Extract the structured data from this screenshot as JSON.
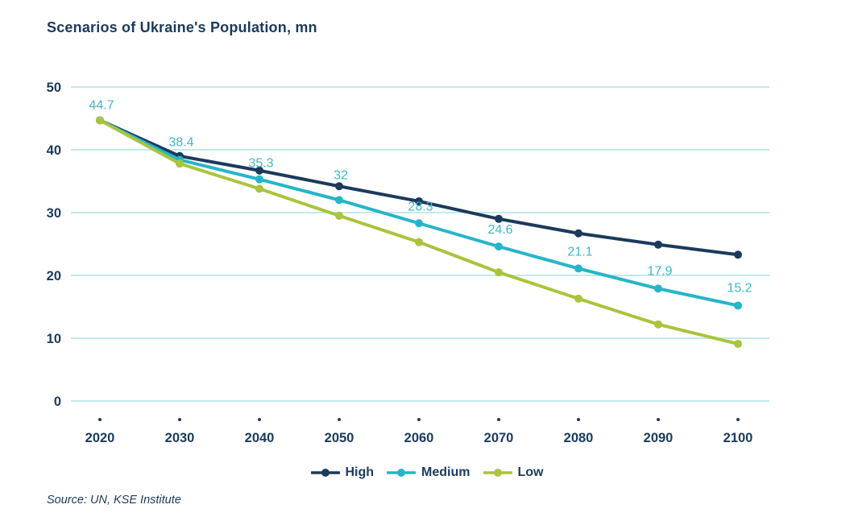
{
  "title": "Scenarios of Ukraine's Population, mn",
  "source": "Source: UN, KSE Institute",
  "colors": {
    "text": "#1b3a5c",
    "grid": "#c3e9ed",
    "data_label": "#3db8ca",
    "high": "#1b3a5c",
    "medium": "#26b5c8",
    "low": "#a9c43d"
  },
  "legend": {
    "items": [
      "High",
      "Medium",
      "Low"
    ]
  },
  "chart_data": {
    "type": "line",
    "title": "Scenarios of Ukraine's Population, mn",
    "x_categories": [
      "2020",
      "2030",
      "2040",
      "2050",
      "2060",
      "2070",
      "2080",
      "2090",
      "2100"
    ],
    "xlabel": "",
    "ylabel": "",
    "ylim": [
      0,
      50
    ],
    "yticks": [
      0,
      10,
      20,
      30,
      40,
      50
    ],
    "grid": true,
    "legend_position": "bottom",
    "series": [
      {
        "name": "High",
        "color": "#1b3a5c",
        "values": [
          44.7,
          39.0,
          36.7,
          34.2,
          31.8,
          29.0,
          26.7,
          24.9,
          23.3
        ]
      },
      {
        "name": "Medium",
        "color": "#26b5c8",
        "values": [
          44.7,
          38.4,
          35.3,
          32,
          28.3,
          24.6,
          21.1,
          17.9,
          15.2
        ],
        "data_labels": [
          "44.7",
          "38.4",
          "35.3",
          "32",
          "28.3",
          "24.6",
          "21.1",
          "17.9",
          "15.2"
        ]
      },
      {
        "name": "Low",
        "color": "#a9c43d",
        "values": [
          44.7,
          37.8,
          33.8,
          29.5,
          25.3,
          20.5,
          16.3,
          12.2,
          9.1
        ]
      }
    ]
  }
}
